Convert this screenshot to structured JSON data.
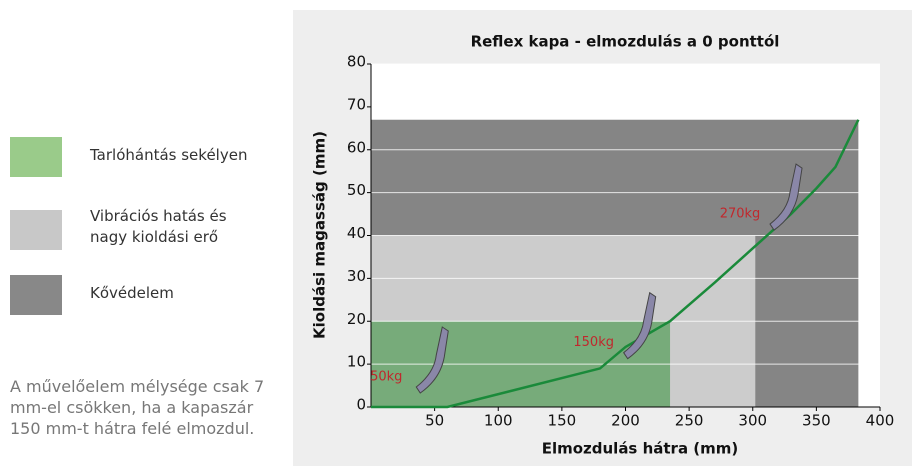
{
  "chart_data": {
    "type": "line",
    "title": "Reflex kapa - elmozdulás a 0 ponttól",
    "xlabel": "Elmozdulás hátra (mm)",
    "ylabel": "Kioldási magasság (mm)",
    "xlim": [
      0,
      400
    ],
    "ylim": [
      0,
      80
    ],
    "xticks": [
      50,
      100,
      150,
      200,
      250,
      300,
      350,
      400
    ],
    "yticks": [
      0,
      10,
      20,
      30,
      40,
      50,
      60,
      70,
      80
    ],
    "regions": [
      {
        "name": "Kővédelem",
        "legend_color": "#888888",
        "color": "#858585",
        "x": [
          0,
          383
        ],
        "y": [
          0,
          67
        ]
      },
      {
        "name": "Vibrációs hatás és nagy kioldási erő",
        "legend_color": "#c8c8c8",
        "color": "#cccccc",
        "x": [
          0,
          302
        ],
        "y": [
          0,
          40
        ]
      },
      {
        "name": "Tarlóhántás sekélyen",
        "legend_color": "#9acb8a",
        "color": "#77ab7a",
        "x": [
          0,
          235
        ],
        "y": [
          0,
          20
        ]
      }
    ],
    "series": [
      {
        "color": "#1a8a3a",
        "x": [
          0,
          60,
          180,
          200,
          235,
          270,
          300,
          330,
          350,
          365,
          383
        ],
        "values": [
          0,
          0,
          9,
          14,
          20,
          29,
          37,
          45,
          51,
          56,
          67
        ]
      }
    ],
    "annotations": [
      {
        "text": "50kg",
        "x": 12,
        "y": 7,
        "color": "#c0282d"
      },
      {
        "text": "150kg",
        "x": 175,
        "y": 15,
        "color": "#c0282d"
      },
      {
        "text": "270kg",
        "x": 290,
        "y": 45,
        "color": "#c0282d"
      }
    ],
    "note": "A művelőelem mélysége csak 7 mm-el csökken, ha a kapaszár 150 mm-t hátra felé elmozdul."
  }
}
